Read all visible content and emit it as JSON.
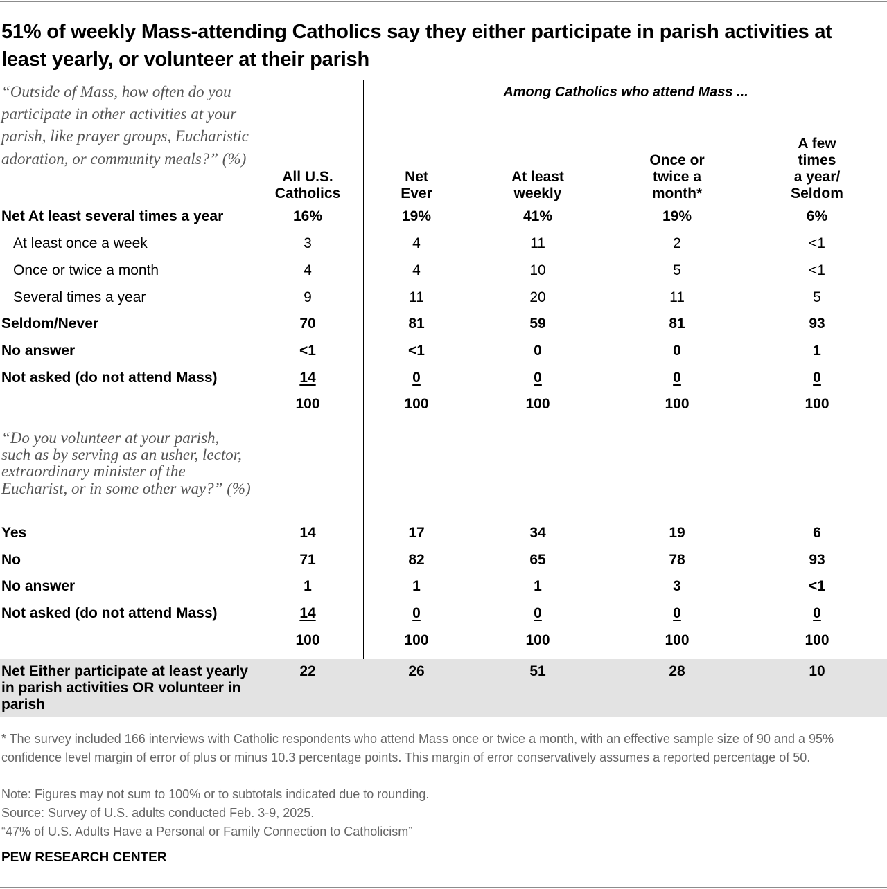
{
  "title": "51% of weekly Mass-attending Catholics say they either participate in parish activities at least yearly, or volunteer at their parish",
  "question1": "“Outside of Mass, how often do you participate in other activities at your parish, like prayer groups, Eucharistic adoration, or community meals?” (%)",
  "question2": "“Do you volunteer at your parish, such as by serving as an usher, lector, extraordinary minister of the Eucharist, or in some other way?” (%)",
  "among_header": "Among Catholics who attend Mass ...",
  "columns": [
    "All U.S. Catholics",
    "Net Ever",
    "At least weekly",
    "Once or twice a month*",
    "A few times a year/ Seldom"
  ],
  "col_lines": [
    [
      "All U.S.",
      "Catholics"
    ],
    [
      "Net",
      "Ever"
    ],
    [
      "At least",
      "weekly"
    ],
    [
      "Once or",
      "twice a",
      "month*"
    ],
    [
      "A few",
      "times",
      "a year/",
      "Seldom"
    ]
  ],
  "chart_data": {
    "type": "table",
    "section1": [
      {
        "label": "Net At least several times a year",
        "values": [
          "16%",
          "19%",
          "41%",
          "19%",
          "6%"
        ]
      },
      {
        "label": "At least once a week",
        "values": [
          "3",
          "4",
          "11",
          "2",
          "<1"
        ]
      },
      {
        "label": "Once or twice a month",
        "values": [
          "4",
          "4",
          "10",
          "5",
          "<1"
        ]
      },
      {
        "label": "Several times a year",
        "values": [
          "9",
          "11",
          "20",
          "11",
          "5"
        ]
      },
      {
        "label": "Seldom/Never",
        "values": [
          "70",
          "81",
          "59",
          "81",
          "93"
        ]
      },
      {
        "label": "No answer",
        "values": [
          "<1",
          "<1",
          "0",
          "0",
          "1"
        ]
      },
      {
        "label": "Not asked (do not attend Mass)",
        "values": [
          "14",
          "0",
          "0",
          "0",
          "0"
        ]
      },
      {
        "label": "",
        "values": [
          "100",
          "100",
          "100",
          "100",
          "100"
        ]
      }
    ],
    "section2": [
      {
        "label": "Yes",
        "values": [
          "14",
          "17",
          "34",
          "19",
          "6"
        ]
      },
      {
        "label": "No",
        "values": [
          "71",
          "82",
          "65",
          "78",
          "93"
        ]
      },
      {
        "label": "No answer",
        "values": [
          "1",
          "1",
          "1",
          "3",
          "<1"
        ]
      },
      {
        "label": "Not asked (do not attend Mass)",
        "values": [
          "14",
          "0",
          "0",
          "0",
          "0"
        ]
      },
      {
        "label": "",
        "values": [
          "100",
          "100",
          "100",
          "100",
          "100"
        ]
      }
    ],
    "net_either": {
      "label": "Net Either participate at least yearly in parish activities OR volunteer in parish",
      "values": [
        "22",
        "26",
        "51",
        "28",
        "10"
      ]
    }
  },
  "footnote": "* The survey included 166 interviews with Catholic respondents who attend Mass once or twice a month, with an effective sample size of 90 and a 95% confidence level margin of error of plus or minus 10.3 percentage points. This margin of error conservatively assumes a reported percentage of 50.",
  "note": "Note: Figures may not sum to 100% or to subtotals indicated due to rounding.",
  "source": "Source: Survey of U.S. adults conducted Feb. 3-9, 2025.",
  "report": "“47% of U.S. Adults Have a Personal or Family Connection to Catholicism”",
  "brand": "PEW RESEARCH CENTER"
}
